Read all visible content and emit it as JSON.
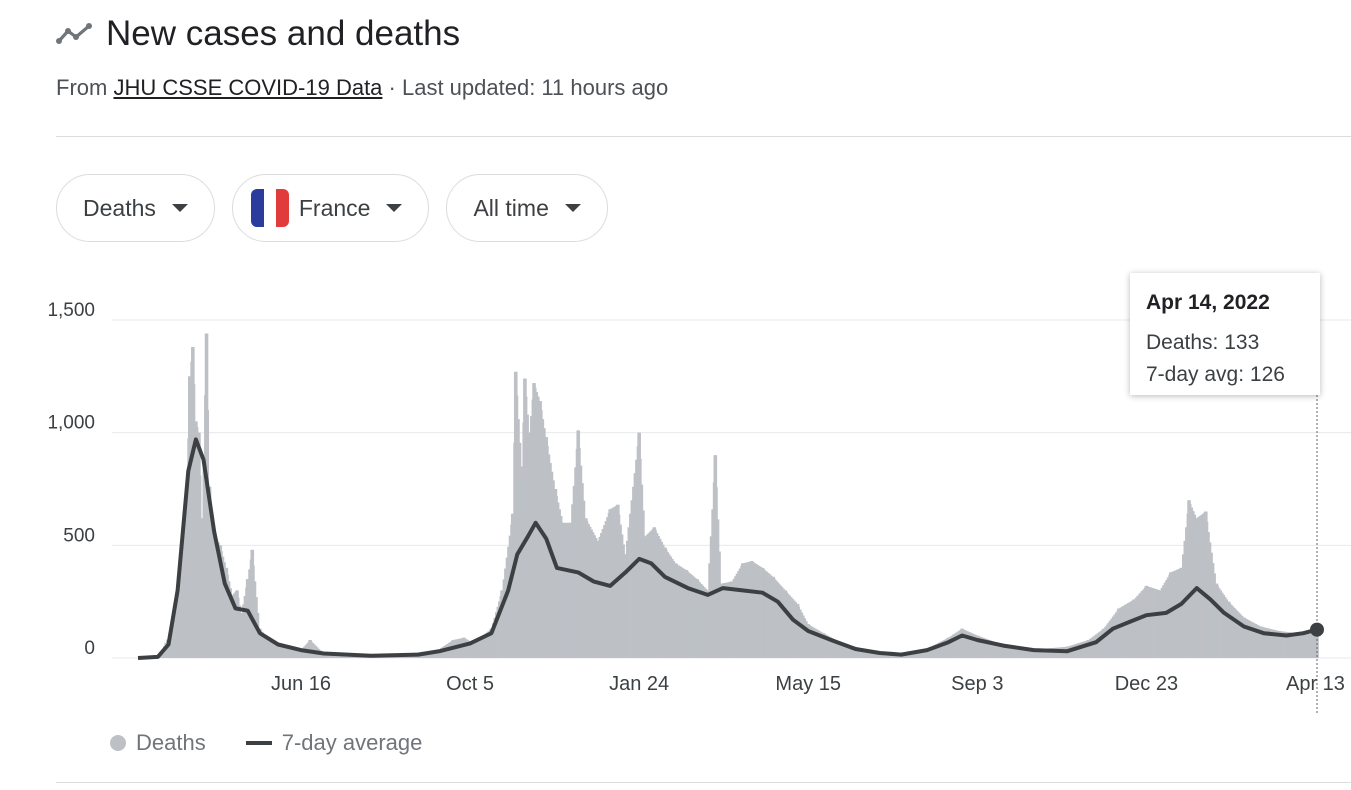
{
  "header": {
    "title": "New cases and deaths",
    "title_icon": "trending-line-icon",
    "source_prefix": "From ",
    "source_link": "JHU CSSE COVID-19 Data",
    "last_updated": " · Last updated: 11 hours ago"
  },
  "filters": {
    "metric": "Deaths",
    "country": "France",
    "country_flag_colors": [
      "#2a3d9c",
      "#ffffff",
      "#e23b3b"
    ],
    "range": "All time"
  },
  "tooltip": {
    "date": "Apr 14, 2022",
    "deaths": "Deaths: 133",
    "avg": "7-day avg: 126"
  },
  "legend": {
    "deaths": "Deaths",
    "avg": "7-day average"
  },
  "colors": {
    "bars": "#bdc1c6",
    "line": "#3c4043",
    "grid": "#e8eaed",
    "axis_text": "#3c4043"
  },
  "chart_data": {
    "type": "bar",
    "x_start": "2020-03-01",
    "x_end": "2022-04-14",
    "ylim": [
      0,
      1500
    ],
    "grid": true,
    "y_ticks": [
      {
        "value": 0,
        "label": "0"
      },
      {
        "value": 500,
        "label": "500"
      },
      {
        "value": 1000,
        "label": "1,000"
      },
      {
        "value": 1500,
        "label": "1,500"
      }
    ],
    "x_ticks": [
      {
        "date": "2020-06-16",
        "label": "Jun 16"
      },
      {
        "date": "2020-10-05",
        "label": "Oct 5"
      },
      {
        "date": "2021-01-24",
        "label": "Jan 24"
      },
      {
        "date": "2021-05-15",
        "label": "May 15"
      },
      {
        "date": "2021-09-03",
        "label": "Sep 3"
      },
      {
        "date": "2021-12-23",
        "label": "Dec 23"
      },
      {
        "date": "2022-04-13",
        "label": "Apr 13"
      }
    ],
    "series": [
      {
        "name": "Deaths",
        "type": "bar",
        "points": [
          [
            "2020-03-01",
            0
          ],
          [
            "2020-03-15",
            10
          ],
          [
            "2020-03-22",
            110
          ],
          [
            "2020-03-28",
            330
          ],
          [
            "2020-04-02",
            700
          ],
          [
            "2020-04-04",
            1250
          ],
          [
            "2020-04-06",
            1380
          ],
          [
            "2020-04-08",
            1050
          ],
          [
            "2020-04-10",
            1000
          ],
          [
            "2020-04-12",
            620
          ],
          [
            "2020-04-15",
            1440
          ],
          [
            "2020-04-17",
            760
          ],
          [
            "2020-04-20",
            550
          ],
          [
            "2020-04-24",
            500
          ],
          [
            "2020-04-28",
            400
          ],
          [
            "2020-05-02",
            280
          ],
          [
            "2020-05-05",
            300
          ],
          [
            "2020-05-08",
            200
          ],
          [
            "2020-05-12",
            350
          ],
          [
            "2020-05-15",
            480
          ],
          [
            "2020-05-20",
            130
          ],
          [
            "2020-05-26",
            80
          ],
          [
            "2020-06-03",
            60
          ],
          [
            "2020-06-16",
            35
          ],
          [
            "2020-06-22",
            80
          ],
          [
            "2020-07-01",
            20
          ],
          [
            "2020-07-15",
            15
          ],
          [
            "2020-08-01",
            12
          ],
          [
            "2020-08-15",
            15
          ],
          [
            "2020-09-01",
            25
          ],
          [
            "2020-09-15",
            40
          ],
          [
            "2020-09-24",
            80
          ],
          [
            "2020-10-01",
            90
          ],
          [
            "2020-10-05",
            75
          ],
          [
            "2020-10-12",
            90
          ],
          [
            "2020-10-19",
            130
          ],
          [
            "2020-10-26",
            300
          ],
          [
            "2020-11-02",
            640
          ],
          [
            "2020-11-04",
            1270
          ],
          [
            "2020-11-08",
            850
          ],
          [
            "2020-11-10",
            1240
          ],
          [
            "2020-11-13",
            1000
          ],
          [
            "2020-11-16",
            1220
          ],
          [
            "2020-11-20",
            1140
          ],
          [
            "2020-11-24",
            980
          ],
          [
            "2020-11-30",
            750
          ],
          [
            "2020-12-05",
            600
          ],
          [
            "2020-12-10",
            600
          ],
          [
            "2020-12-15",
            1010
          ],
          [
            "2020-12-20",
            620
          ],
          [
            "2020-12-28",
            520
          ],
          [
            "2021-01-05",
            660
          ],
          [
            "2021-01-10",
            680
          ],
          [
            "2021-01-15",
            460
          ],
          [
            "2021-01-24",
            1000
          ],
          [
            "2021-01-28",
            540
          ],
          [
            "2021-02-03",
            580
          ],
          [
            "2021-02-10",
            490
          ],
          [
            "2021-02-17",
            420
          ],
          [
            "2021-02-24",
            390
          ],
          [
            "2021-03-03",
            350
          ],
          [
            "2021-03-10",
            300
          ],
          [
            "2021-03-15",
            900
          ],
          [
            "2021-03-19",
            330
          ],
          [
            "2021-03-26",
            340
          ],
          [
            "2021-04-02",
            420
          ],
          [
            "2021-04-08",
            430
          ],
          [
            "2021-04-15",
            400
          ],
          [
            "2021-04-22",
            360
          ],
          [
            "2021-04-30",
            300
          ],
          [
            "2021-05-08",
            240
          ],
          [
            "2021-05-15",
            150
          ],
          [
            "2021-05-25",
            110
          ],
          [
            "2021-06-05",
            70
          ],
          [
            "2021-06-20",
            40
          ],
          [
            "2021-07-01",
            25
          ],
          [
            "2021-07-20",
            20
          ],
          [
            "2021-08-01",
            40
          ],
          [
            "2021-08-15",
            90
          ],
          [
            "2021-08-24",
            130
          ],
          [
            "2021-09-03",
            100
          ],
          [
            "2021-09-15",
            70
          ],
          [
            "2021-10-01",
            50
          ],
          [
            "2021-10-15",
            40
          ],
          [
            "2021-11-01",
            50
          ],
          [
            "2021-11-15",
            80
          ],
          [
            "2021-11-25",
            130
          ],
          [
            "2021-12-05",
            220
          ],
          [
            "2021-12-15",
            260
          ],
          [
            "2021-12-23",
            320
          ],
          [
            "2022-01-01",
            300
          ],
          [
            "2022-01-08",
            380
          ],
          [
            "2022-01-15",
            400
          ],
          [
            "2022-01-20",
            700
          ],
          [
            "2022-01-25",
            620
          ],
          [
            "2022-01-31",
            650
          ],
          [
            "2022-02-07",
            330
          ],
          [
            "2022-02-15",
            250
          ],
          [
            "2022-02-25",
            180
          ],
          [
            "2022-03-08",
            140
          ],
          [
            "2022-03-20",
            120
          ],
          [
            "2022-04-01",
            110
          ],
          [
            "2022-04-14",
            133
          ]
        ]
      },
      {
        "name": "7-day average",
        "type": "line",
        "points": [
          [
            "2020-03-01",
            0
          ],
          [
            "2020-03-14",
            5
          ],
          [
            "2020-03-21",
            60
          ],
          [
            "2020-03-27",
            300
          ],
          [
            "2020-04-03",
            830
          ],
          [
            "2020-04-08",
            970
          ],
          [
            "2020-04-13",
            880
          ],
          [
            "2020-04-20",
            560
          ],
          [
            "2020-04-27",
            330
          ],
          [
            "2020-05-04",
            220
          ],
          [
            "2020-05-12",
            210
          ],
          [
            "2020-05-20",
            110
          ],
          [
            "2020-06-01",
            60
          ],
          [
            "2020-06-16",
            35
          ],
          [
            "2020-07-01",
            20
          ],
          [
            "2020-08-01",
            10
          ],
          [
            "2020-09-01",
            15
          ],
          [
            "2020-09-15",
            30
          ],
          [
            "2020-10-05",
            65
          ],
          [
            "2020-10-19",
            110
          ],
          [
            "2020-10-30",
            300
          ],
          [
            "2020-11-05",
            460
          ],
          [
            "2020-11-12",
            540
          ],
          [
            "2020-11-17",
            600
          ],
          [
            "2020-11-24",
            530
          ],
          [
            "2020-12-01",
            400
          ],
          [
            "2020-12-15",
            380
          ],
          [
            "2020-12-25",
            340
          ],
          [
            "2021-01-05",
            320
          ],
          [
            "2021-01-15",
            380
          ],
          [
            "2021-01-24",
            440
          ],
          [
            "2021-02-01",
            420
          ],
          [
            "2021-02-10",
            360
          ],
          [
            "2021-02-25",
            310
          ],
          [
            "2021-03-10",
            280
          ],
          [
            "2021-03-20",
            310
          ],
          [
            "2021-04-02",
            300
          ],
          [
            "2021-04-15",
            290
          ],
          [
            "2021-04-25",
            250
          ],
          [
            "2021-05-05",
            170
          ],
          [
            "2021-05-15",
            120
          ],
          [
            "2021-05-30",
            80
          ],
          [
            "2021-06-15",
            40
          ],
          [
            "2021-07-01",
            22
          ],
          [
            "2021-07-15",
            15
          ],
          [
            "2021-08-01",
            35
          ],
          [
            "2021-08-15",
            70
          ],
          [
            "2021-08-24",
            100
          ],
          [
            "2021-09-03",
            80
          ],
          [
            "2021-09-20",
            55
          ],
          [
            "2021-10-10",
            35
          ],
          [
            "2021-11-01",
            30
          ],
          [
            "2021-11-20",
            70
          ],
          [
            "2021-12-01",
            130
          ],
          [
            "2021-12-12",
            160
          ],
          [
            "2021-12-23",
            190
          ],
          [
            "2022-01-05",
            200
          ],
          [
            "2022-01-15",
            240
          ],
          [
            "2022-01-25",
            310
          ],
          [
            "2022-02-03",
            260
          ],
          [
            "2022-02-12",
            200
          ],
          [
            "2022-02-25",
            140
          ],
          [
            "2022-03-10",
            110
          ],
          [
            "2022-03-25",
            100
          ],
          [
            "2022-04-05",
            110
          ],
          [
            "2022-04-14",
            126
          ]
        ]
      }
    ]
  }
}
